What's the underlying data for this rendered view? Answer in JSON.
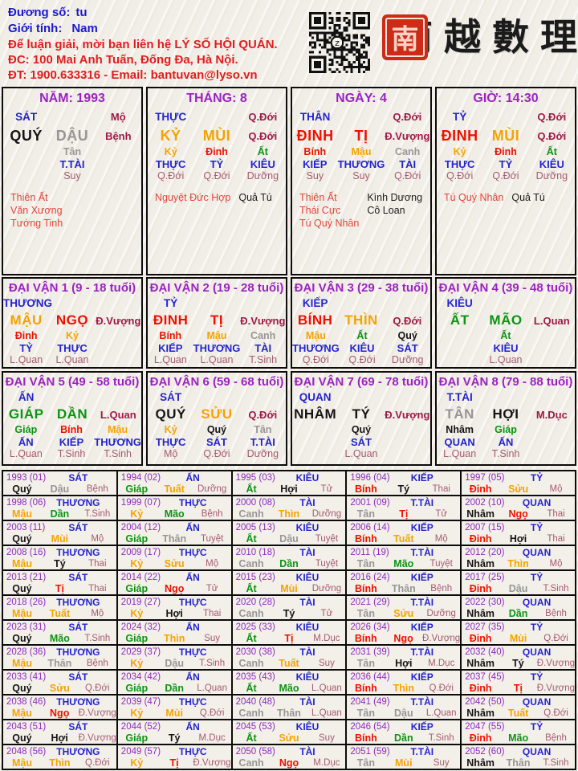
{
  "header": {
    "field1_label": "Đương số:",
    "field1_value": "tu",
    "field2_label": "Giới tính:",
    "field2_value": "Nam",
    "contact_line1": "Để luận giải, mời bạn liên hệ LÝ SỐ HỘI QUÁN.",
    "contact_line2": "ĐC: 100 Mai Anh Tuấn, Đống Đa, Hà Nội.",
    "contact_line3": "ĐT: 1900.633316 - Email: bantuvan@lyso.vn",
    "brand_chars": [
      "南",
      "越",
      "數",
      "理"
    ],
    "seal_glyph": "南"
  },
  "palette": {
    "blue": "#2424cd",
    "purple": "#9b22c0",
    "red": "#ee1100",
    "orange": "#f5a300",
    "green": "#0b9413",
    "gray": "#969696",
    "black": "#141414",
    "maroon": "#9e1a46",
    "maroon_light": "#a65a72",
    "star_red": "#e4453c"
  },
  "element_colors": {
    "stems": {
      "giáp": "green",
      "ất": "green",
      "bính": "red",
      "đinh": "red",
      "mậu": "orange",
      "kỷ": "orange",
      "canh": "gray",
      "tân": "gray",
      "nhâm": "black",
      "quý": "black"
    },
    "branches": {
      "tý": "black",
      "sửu": "orange",
      "dần": "green",
      "mão": "green",
      "thìn": "orange",
      "tị": "red",
      "ngọ": "red",
      "mùi": "orange",
      "thân": "gray",
      "dậu": "gray",
      "tuất": "orange",
      "hợi": "black"
    }
  },
  "pillars": [
    {
      "title": "NĂM: 1993",
      "god": "SÁT",
      "stage_top": "Mộ",
      "stem": "QUÝ",
      "branch": "DẬU",
      "stage_main": "Bệnh",
      "hidden": [
        {
          "stem": "Tân",
          "god": "T.TÀI",
          "stage": "Suy"
        }
      ],
      "stars_red": [
        "Thiên Ất",
        "Văn Xương",
        "Tướng Tinh"
      ],
      "stars_black": []
    },
    {
      "title": "THÁNG: 8",
      "god": "THỰC",
      "stage_top": "Q.Đới",
      "stem": "KỶ",
      "branch": "MÙI",
      "stage_main": "Q.Đới",
      "hidden": [
        {
          "stem": "Kỷ",
          "god": "THỰC",
          "stage": "Q.Đới"
        },
        {
          "stem": "Đinh",
          "god": "TỶ",
          "stage": "Q.Đới"
        },
        {
          "stem": "Ất",
          "god": "KIÊU",
          "stage": "Dưỡng"
        }
      ],
      "stars_red": [
        "Nguyệt Đức Hợp"
      ],
      "stars_black": [
        "Quả Tú"
      ]
    },
    {
      "title": "NGÀY: 4",
      "god": "THÂN",
      "stage_top": "Q.Đới",
      "stem": "ĐINH",
      "branch": "TỊ",
      "stage_main": "Đ.Vượng",
      "hidden": [
        {
          "stem": "Bính",
          "god": "KIẾP",
          "stage": "Suy"
        },
        {
          "stem": "Mậu",
          "god": "THƯƠNG",
          "stage": "Suy"
        },
        {
          "stem": "Canh",
          "god": "TÀI",
          "stage": "Q.Đới"
        }
      ],
      "stars_red": [
        "Thiên Ất",
        "Thái Cực",
        "Tú Quý Nhân"
      ],
      "stars_black": [
        "Kình Dương",
        "Cô Loan"
      ]
    },
    {
      "title": "GIỜ: 14:30",
      "god": "TỶ",
      "stage_top": "Q.Đới",
      "stem": "ĐINH",
      "branch": "MÙI",
      "stage_main": "Q.Đới",
      "hidden": [
        {
          "stem": "Kỷ",
          "god": "THỰC",
          "stage": "Q.Đới"
        },
        {
          "stem": "Đinh",
          "god": "TỶ",
          "stage": "Q.Đới"
        },
        {
          "stem": "Ất",
          "god": "KIÊU",
          "stage": "Dưỡng"
        }
      ],
      "stars_red": [
        "Tú Quý Nhân"
      ],
      "stars_black": [
        "Quả Tú"
      ]
    }
  ],
  "daivan": [
    {
      "title": "ĐẠI VẬN 1 (9 - 18 tuổi)",
      "god": "THƯƠNG",
      "stem": "MẬU",
      "branch": "NGỌ",
      "stage": "Đ.Vượng",
      "hidden": [
        {
          "stem": "Đinh",
          "god": "TỶ",
          "stage": "L.Quan"
        },
        {
          "stem": "Kỷ",
          "god": "THỰC",
          "stage": "L.Quan"
        }
      ]
    },
    {
      "title": "ĐẠI VẬN 2 (19 - 28 tuổi)",
      "god": "TỶ",
      "stem": "ĐINH",
      "branch": "TỊ",
      "stage": "Đ.Vượng",
      "hidden": [
        {
          "stem": "Bính",
          "god": "KIẾP",
          "stage": "L.Quan"
        },
        {
          "stem": "Mậu",
          "god": "THƯƠNG",
          "stage": "L.Quan"
        },
        {
          "stem": "Canh",
          "god": "TÀI",
          "stage": "T.Sinh"
        }
      ]
    },
    {
      "title": "ĐẠI VẬN 3 (29 - 38 tuổi)",
      "god": "KIẾP",
      "stem": "BÍNH",
      "branch": "THÌN",
      "stage": "Q.Đới",
      "hidden": [
        {
          "stem": "Mậu",
          "god": "THƯƠNG",
          "stage": "Q.Đới"
        },
        {
          "stem": "Ất",
          "god": "KIÊU",
          "stage": "Q.Đới"
        },
        {
          "stem": "Quý",
          "god": "SÁT",
          "stage": "Dưỡng"
        }
      ]
    },
    {
      "title": "ĐẠI VẬN 4 (39 - 48 tuổi)",
      "god": "KIÊU",
      "stem": "ẤT",
      "branch": "MÃO",
      "stage": "L.Quan",
      "hidden": [
        {
          "stem": "Ất",
          "god": "KIÊU",
          "stage": "L.Quan"
        }
      ]
    },
    {
      "title": "ĐẠI VẬN 5 (49 - 58 tuổi)",
      "god": "ẤN",
      "stem": "GIÁP",
      "branch": "DẦN",
      "stage": "L.Quan",
      "hidden": [
        {
          "stem": "Giáp",
          "god": "ẤN",
          "stage": "L.Quan"
        },
        {
          "stem": "Bính",
          "god": "KIẾP",
          "stage": "T.Sinh"
        },
        {
          "stem": "Mậu",
          "god": "THƯƠNG",
          "stage": "T.Sinh"
        }
      ]
    },
    {
      "title": "ĐẠI VẬN 6 (59 - 68 tuổi)",
      "god": "SÁT",
      "stem": "QUÝ",
      "branch": "SỬU",
      "stage": "Q.Đới",
      "hidden": [
        {
          "stem": "Kỷ",
          "god": "THỰC",
          "stage": "Mộ"
        },
        {
          "stem": "Quý",
          "god": "SÁT",
          "stage": "Q.Đới"
        },
        {
          "stem": "Tân",
          "god": "T.TÀI",
          "stage": "Dưỡng"
        }
      ]
    },
    {
      "title": "ĐẠI VẬN 7 (69 - 78 tuổi)",
      "god": "QUAN",
      "stem": "NHÂM",
      "branch": "TÝ",
      "stage": "Đ.Vượng",
      "hidden": [
        {
          "stem": "Quý",
          "god": "SÁT",
          "stage": "L.Quan"
        }
      ]
    },
    {
      "title": "ĐẠI VẬN 8 (79 - 88 tuổi)",
      "god": "T.TÀI",
      "stem": "TÂN",
      "branch": "HỢI",
      "stage": "M.Dục",
      "hidden": [
        {
          "stem": "Nhâm",
          "god": "QUAN",
          "stage": "L.Quan"
        },
        {
          "stem": "Giáp",
          "god": "ẤN",
          "stage": "T.Sinh"
        }
      ]
    }
  ],
  "years": [
    {
      "y": "1993",
      "n": "(01)",
      "g": "SÁT",
      "s": "Quý",
      "b": "Dậu",
      "t": "Bệnh"
    },
    {
      "y": "1994",
      "n": "(02)",
      "g": "ẤN",
      "s": "Giáp",
      "b": "Tuất",
      "t": "Dưỡng"
    },
    {
      "y": "1995",
      "n": "(03)",
      "g": "KIÊU",
      "s": "Ất",
      "b": "Hợi",
      "t": "Tử"
    },
    {
      "y": "1996",
      "n": "(04)",
      "g": "KIẾP",
      "s": "Bính",
      "b": "Tý",
      "t": "Thai"
    },
    {
      "y": "1997",
      "n": "(05)",
      "g": "TỶ",
      "s": "Đinh",
      "b": "Sửu",
      "t": "Mộ"
    },
    {
      "y": "1998",
      "n": "(06)",
      "g": "THƯƠNG",
      "s": "Mậu",
      "b": "Dần",
      "t": "T.Sinh"
    },
    {
      "y": "1999",
      "n": "(07)",
      "g": "THỰC",
      "s": "Kỷ",
      "b": "Mão",
      "t": "Bệnh"
    },
    {
      "y": "2000",
      "n": "(08)",
      "g": "TÀI",
      "s": "Canh",
      "b": "Thìn",
      "t": "Dưỡng"
    },
    {
      "y": "2001",
      "n": "(09)",
      "g": "T.TÀI",
      "s": "Tân",
      "b": "Tị",
      "t": "Tử"
    },
    {
      "y": "2002",
      "n": "(10)",
      "g": "QUAN",
      "s": "Nhâm",
      "b": "Ngọ",
      "t": "Thai"
    },
    {
      "y": "2003",
      "n": "(11)",
      "g": "SÁT",
      "s": "Quý",
      "b": "Mùi",
      "t": "Mộ"
    },
    {
      "y": "2004",
      "n": "(12)",
      "g": "ẤN",
      "s": "Giáp",
      "b": "Thân",
      "t": "Tuyệt"
    },
    {
      "y": "2005",
      "n": "(13)",
      "g": "KIÊU",
      "s": "Ất",
      "b": "Dậu",
      "t": "Tuyệt"
    },
    {
      "y": "2006",
      "n": "(14)",
      "g": "KIẾP",
      "s": "Bính",
      "b": "Tuất",
      "t": "Mộ"
    },
    {
      "y": "2007",
      "n": "(15)",
      "g": "TỶ",
      "s": "Đinh",
      "b": "Hợi",
      "t": "Thai"
    },
    {
      "y": "2008",
      "n": "(16)",
      "g": "THƯƠNG",
      "s": "Mậu",
      "b": "Tý",
      "t": "Thai"
    },
    {
      "y": "2009",
      "n": "(17)",
      "g": "THỰC",
      "s": "Kỷ",
      "b": "Sửu",
      "t": "Mộ"
    },
    {
      "y": "2010",
      "n": "(18)",
      "g": "TÀI",
      "s": "Canh",
      "b": "Dần",
      "t": "Tuyệt"
    },
    {
      "y": "2011",
      "n": "(19)",
      "g": "T.TÀI",
      "s": "Tân",
      "b": "Mão",
      "t": "Tuyệt"
    },
    {
      "y": "2012",
      "n": "(20)",
      "g": "QUAN",
      "s": "Nhâm",
      "b": "Thìn",
      "t": "Mộ"
    },
    {
      "y": "2013",
      "n": "(21)",
      "g": "SÁT",
      "s": "Quý",
      "b": "Tị",
      "t": "Thai"
    },
    {
      "y": "2014",
      "n": "(22)",
      "g": "ẤN",
      "s": "Giáp",
      "b": "Ngọ",
      "t": "Tử"
    },
    {
      "y": "2015",
      "n": "(23)",
      "g": "KIÊU",
      "s": "Ất",
      "b": "Mùi",
      "t": "Dưỡng"
    },
    {
      "y": "2016",
      "n": "(24)",
      "g": "KIẾP",
      "s": "Bính",
      "b": "Thân",
      "t": "Bệnh"
    },
    {
      "y": "2017",
      "n": "(25)",
      "g": "TỶ",
      "s": "Đinh",
      "b": "Dậu",
      "t": "T.Sinh"
    },
    {
      "y": "2018",
      "n": "(26)",
      "g": "THƯƠNG",
      "s": "Mậu",
      "b": "Tuất",
      "t": "Mộ"
    },
    {
      "y": "2019",
      "n": "(27)",
      "g": "THỰC",
      "s": "Kỷ",
      "b": "Hợi",
      "t": "Thai"
    },
    {
      "y": "2020",
      "n": "(28)",
      "g": "TÀI",
      "s": "Canh",
      "b": "Tý",
      "t": "Tử"
    },
    {
      "y": "2021",
      "n": "(29)",
      "g": "T.TÀI",
      "s": "Tân",
      "b": "Sửu",
      "t": "Dưỡng"
    },
    {
      "y": "2022",
      "n": "(30)",
      "g": "QUAN",
      "s": "Nhâm",
      "b": "Dần",
      "t": "Bệnh"
    },
    {
      "y": "2023",
      "n": "(31)",
      "g": "SÁT",
      "s": "Quý",
      "b": "Mão",
      "t": "T.Sinh"
    },
    {
      "y": "2024",
      "n": "(32)",
      "g": "ẤN",
      "s": "Giáp",
      "b": "Thìn",
      "t": "Suy"
    },
    {
      "y": "2025",
      "n": "(33)",
      "g": "KIÊU",
      "s": "Ất",
      "b": "Tị",
      "t": "M.Dục"
    },
    {
      "y": "2026",
      "n": "(34)",
      "g": "KIẾP",
      "s": "Bính",
      "b": "Ngọ",
      "t": "Đ.Vượng"
    },
    {
      "y": "2027",
      "n": "(35)",
      "g": "TỶ",
      "s": "Đinh",
      "b": "Mùi",
      "t": "Q.Đới"
    },
    {
      "y": "2028",
      "n": "(36)",
      "g": "THƯƠNG",
      "s": "Mậu",
      "b": "Thân",
      "t": "Bệnh"
    },
    {
      "y": "2029",
      "n": "(37)",
      "g": "THỰC",
      "s": "Kỷ",
      "b": "Dậu",
      "t": "T.Sinh"
    },
    {
      "y": "2030",
      "n": "(38)",
      "g": "TÀI",
      "s": "Canh",
      "b": "Tuất",
      "t": "Suy"
    },
    {
      "y": "2031",
      "n": "(39)",
      "g": "T.TÀI",
      "s": "Tân",
      "b": "Hợi",
      "t": "M.Dục"
    },
    {
      "y": "2032",
      "n": "(40)",
      "g": "QUAN",
      "s": "Nhâm",
      "b": "Tý",
      "t": "Đ.Vượng"
    },
    {
      "y": "2033",
      "n": "(41)",
      "g": "SÁT",
      "s": "Quý",
      "b": "Sửu",
      "t": "Q.Đới"
    },
    {
      "y": "2034",
      "n": "(42)",
      "g": "ẤN",
      "s": "Giáp",
      "b": "Dần",
      "t": "L.Quan"
    },
    {
      "y": "2035",
      "n": "(43)",
      "g": "KIÊU",
      "s": "Ất",
      "b": "Mão",
      "t": "L.Quan"
    },
    {
      "y": "2036",
      "n": "(44)",
      "g": "KIẾP",
      "s": "Bính",
      "b": "Thìn",
      "t": "Q.Đới"
    },
    {
      "y": "2037",
      "n": "(45)",
      "g": "TỶ",
      "s": "Đinh",
      "b": "Tị",
      "t": "Đ.Vượng"
    },
    {
      "y": "2038",
      "n": "(46)",
      "g": "THƯƠNG",
      "s": "Mậu",
      "b": "Ngọ",
      "t": "Đ.Vượng"
    },
    {
      "y": "2039",
      "n": "(47)",
      "g": "THỰC",
      "s": "Kỷ",
      "b": "Mùi",
      "t": "Q.Đới"
    },
    {
      "y": "2040",
      "n": "(48)",
      "g": "TÀI",
      "s": "Canh",
      "b": "Thân",
      "t": "L.Quan"
    },
    {
      "y": "2041",
      "n": "(49)",
      "g": "T.TÀI",
      "s": "Tân",
      "b": "Dậu",
      "t": "L.Quan"
    },
    {
      "y": "2042",
      "n": "(50)",
      "g": "QUAN",
      "s": "Nhâm",
      "b": "Tuất",
      "t": "Q.Đới"
    },
    {
      "y": "2043",
      "n": "(51)",
      "g": "SÁT",
      "s": "Quý",
      "b": "Hợi",
      "t": "Đ.Vượng"
    },
    {
      "y": "2044",
      "n": "(52)",
      "g": "ẤN",
      "s": "Giáp",
      "b": "Tý",
      "t": "M.Dục"
    },
    {
      "y": "2045",
      "n": "(53)",
      "g": "KIÊU",
      "s": "Ất",
      "b": "Sửu",
      "t": "Suy"
    },
    {
      "y": "2046",
      "n": "(54)",
      "g": "KIẾP",
      "s": "Bính",
      "b": "Dần",
      "t": "T.Sinh"
    },
    {
      "y": "2047",
      "n": "(55)",
      "g": "TỶ",
      "s": "Đinh",
      "b": "Mão",
      "t": "Bệnh"
    },
    {
      "y": "2048",
      "n": "(56)",
      "g": "THƯƠNG",
      "s": "Mậu",
      "b": "Thìn",
      "t": "Q.Đới"
    },
    {
      "y": "2049",
      "n": "(57)",
      "g": "THỰC",
      "s": "Kỷ",
      "b": "Tị",
      "t": "Đ.Vượng"
    },
    {
      "y": "2050",
      "n": "(58)",
      "g": "TÀI",
      "s": "Canh",
      "b": "Ngọ",
      "t": "M.Dục"
    },
    {
      "y": "2051",
      "n": "(59)",
      "g": "T.TÀI",
      "s": "Tân",
      "b": "Mùi",
      "t": "Suy"
    },
    {
      "y": "2052",
      "n": "(60)",
      "g": "QUAN",
      "s": "Nhâm",
      "b": "Thân",
      "t": "T.Sinh"
    }
  ]
}
